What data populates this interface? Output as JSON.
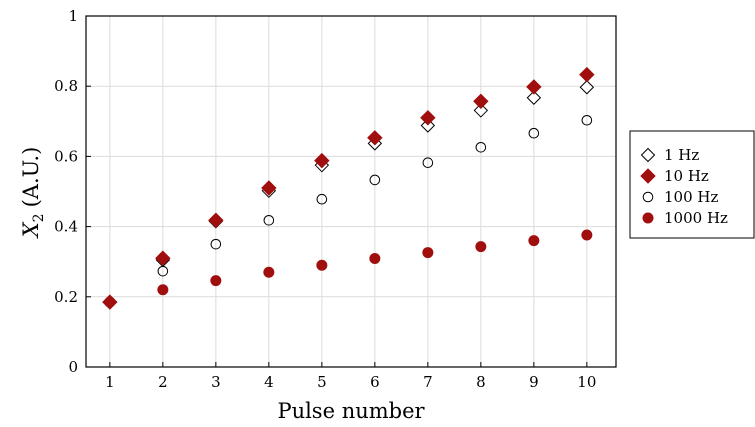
{
  "chart_data": {
    "type": "scatter",
    "title": "",
    "xlabel": "Pulse number",
    "ylabel": "X",
    "ylabel_subscript": "2",
    "ylabel_unit": "(A.U.)",
    "xlim": [
      0.55,
      10.55
    ],
    "ylim": [
      0,
      1
    ],
    "xticks": [
      "1",
      "2",
      "3",
      "4",
      "5",
      "6",
      "7",
      "8",
      "9",
      "10"
    ],
    "yticks": [
      "0",
      "0.2",
      "0.4",
      "0.6",
      "0.8",
      "1"
    ],
    "grid": true,
    "legend_position": "outside-right",
    "x": [
      1,
      2,
      3,
      4,
      5,
      6,
      7,
      8,
      9,
      10
    ],
    "series": [
      {
        "name": "1 Hz",
        "marker": "diamond-open",
        "color": "#000000",
        "values": [
          0.185,
          0.305,
          0.415,
          0.502,
          0.575,
          0.637,
          0.688,
          0.731,
          0.767,
          0.797
        ]
      },
      {
        "name": "10 Hz",
        "marker": "diamond-filled",
        "color": "#a10e0e",
        "values": [
          0.185,
          0.31,
          0.418,
          0.51,
          0.588,
          0.653,
          0.71,
          0.757,
          0.798,
          0.833
        ]
      },
      {
        "name": "100 Hz",
        "marker": "circle-open",
        "color": "#000000",
        "values": [
          0.185,
          0.273,
          0.35,
          0.418,
          0.478,
          0.533,
          0.582,
          0.626,
          0.666,
          0.703
        ]
      },
      {
        "name": "1000 Hz",
        "marker": "circle-filled",
        "color": "#a10e0e",
        "values": [
          0.185,
          0.22,
          0.246,
          0.27,
          0.29,
          0.309,
          0.326,
          0.343,
          0.36,
          0.376
        ]
      }
    ]
  }
}
